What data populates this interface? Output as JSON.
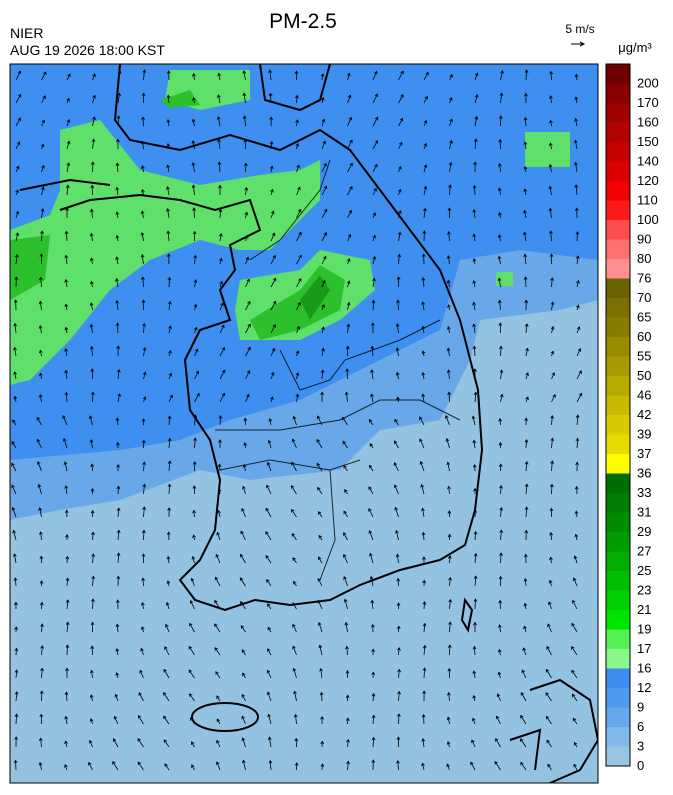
{
  "header": {
    "title": "PM-2.5",
    "agency": "NIER",
    "datetime": "AUG 19 2026 18:00 KST",
    "wind_scale": "5 m/s",
    "unit": "μg/m³"
  },
  "colorbar": {
    "labels": [
      "200",
      "170",
      "160",
      "150",
      "140",
      "120",
      "110",
      "100",
      "90",
      "80",
      "76",
      "70",
      "65",
      "60",
      "55",
      "50",
      "46",
      "42",
      "39",
      "37",
      "36",
      "33",
      "31",
      "29",
      "27",
      "25",
      "23",
      "21",
      "19",
      "17",
      "16",
      "12",
      "9",
      "6",
      "3",
      "0"
    ],
    "colors": [
      "#6e0000",
      "#8a0000",
      "#9e0000",
      "#b00000",
      "#c40000",
      "#d80000",
      "#f00000",
      "#ff1a1a",
      "#ff4d4d",
      "#ff7070",
      "#ff9090",
      "#6b6100",
      "#7a6f00",
      "#897d00",
      "#988b00",
      "#a89a00",
      "#b8aa00",
      "#c8ba00",
      "#d8cb00",
      "#e6dc00",
      "#ffff00",
      "#006e00",
      "#007d00",
      "#008c00",
      "#009c00",
      "#00ad00",
      "#00be00",
      "#00d000",
      "#00e400",
      "#55f055",
      "#8cf78c",
      "#3d8ef0",
      "#4f9af0",
      "#66a8ec",
      "#80b8e8",
      "#98c6e2"
    ]
  }
}
